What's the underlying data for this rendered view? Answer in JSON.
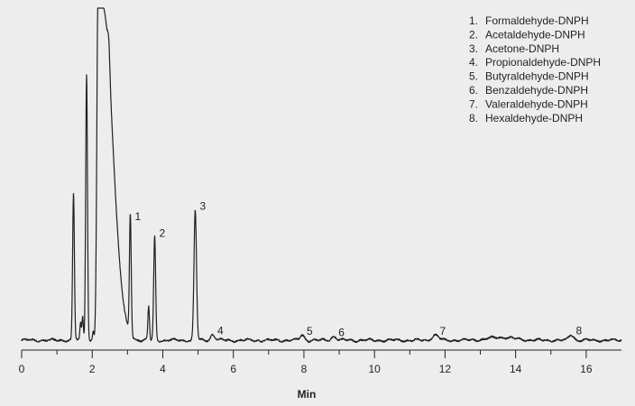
{
  "chart_data": {
    "type": "line",
    "title": "",
    "xlabel": "Min",
    "ylabel": "",
    "xlim": [
      0,
      17
    ],
    "ylim": [
      0,
      100
    ],
    "x_ticks": [
      0,
      2,
      4,
      6,
      8,
      10,
      12,
      14,
      16
    ],
    "x_minor_ticks": [
      1,
      3,
      5,
      7,
      9,
      11,
      13,
      15
    ],
    "grid": false,
    "legend_position": "top-right",
    "line_color": "#231f20",
    "baseline": 0.5,
    "peaks": [
      {
        "x": 1.47,
        "height": 44,
        "width": 0.025
      },
      {
        "x": 1.67,
        "height": 5,
        "width": 0.02
      },
      {
        "x": 1.73,
        "height": 7,
        "width": 0.02
      },
      {
        "x": 1.84,
        "height": 80,
        "width": 0.025
      },
      {
        "x": 2.03,
        "height": 3,
        "width": 0.02
      },
      {
        "x": 2.1,
        "height": 4,
        "width": 0.02
      },
      {
        "x": 2.23,
        "height": 100,
        "width": 0.03,
        "flat_top": true,
        "flat_half_width": 0.07,
        "tail": 0.25
      },
      {
        "x": 2.47,
        "height": 7,
        "width": 0.03
      },
      {
        "x": 3.08,
        "height": 36,
        "width": 0.025
      },
      {
        "x": 3.6,
        "height": 10,
        "width": 0.022
      },
      {
        "x": 3.77,
        "height": 31,
        "width": 0.027
      },
      {
        "x": 4.92,
        "height": 39,
        "width": 0.035
      },
      {
        "x": 5.42,
        "height": 1.8,
        "width": 0.06
      },
      {
        "x": 7.95,
        "height": 1.6,
        "width": 0.06
      },
      {
        "x": 8.85,
        "height": 1.2,
        "width": 0.07
      },
      {
        "x": 11.72,
        "height": 1.6,
        "width": 0.09
      },
      {
        "x": 13.6,
        "height": 0.9,
        "width": 0.35
      },
      {
        "x": 15.58,
        "height": 1.7,
        "width": 0.07
      }
    ],
    "peak_labels": [
      {
        "text": "1",
        "x": 3.08,
        "y": 36
      },
      {
        "text": "2",
        "x": 3.77,
        "y": 31
      },
      {
        "text": "3",
        "x": 4.92,
        "y": 39
      },
      {
        "text": "4",
        "x": 5.42,
        "y": 1.8
      },
      {
        "text": "5",
        "x": 7.95,
        "y": 1.6
      },
      {
        "text": "6",
        "x": 8.85,
        "y": 1.2
      },
      {
        "text": "7",
        "x": 11.72,
        "y": 1.6
      },
      {
        "text": "8",
        "x": 15.58,
        "y": 1.7
      }
    ],
    "legend": [
      {
        "num": "1.",
        "name": "Formaldehyde-DNPH"
      },
      {
        "num": "2.",
        "name": "Acetaldehyde-DNPH"
      },
      {
        "num": "3.",
        "name": "Acetone-DNPH"
      },
      {
        "num": "4.",
        "name": "Propionaldehyde-DNPH"
      },
      {
        "num": "5.",
        "name": "Butyraldehyde-DNPH"
      },
      {
        "num": "6.",
        "name": "Benzaldehyde-DNPH"
      },
      {
        "num": "7.",
        "name": "Valeraldehyde-DNPH"
      },
      {
        "num": "8.",
        "name": "Hexaldehyde-DNPH"
      }
    ]
  }
}
